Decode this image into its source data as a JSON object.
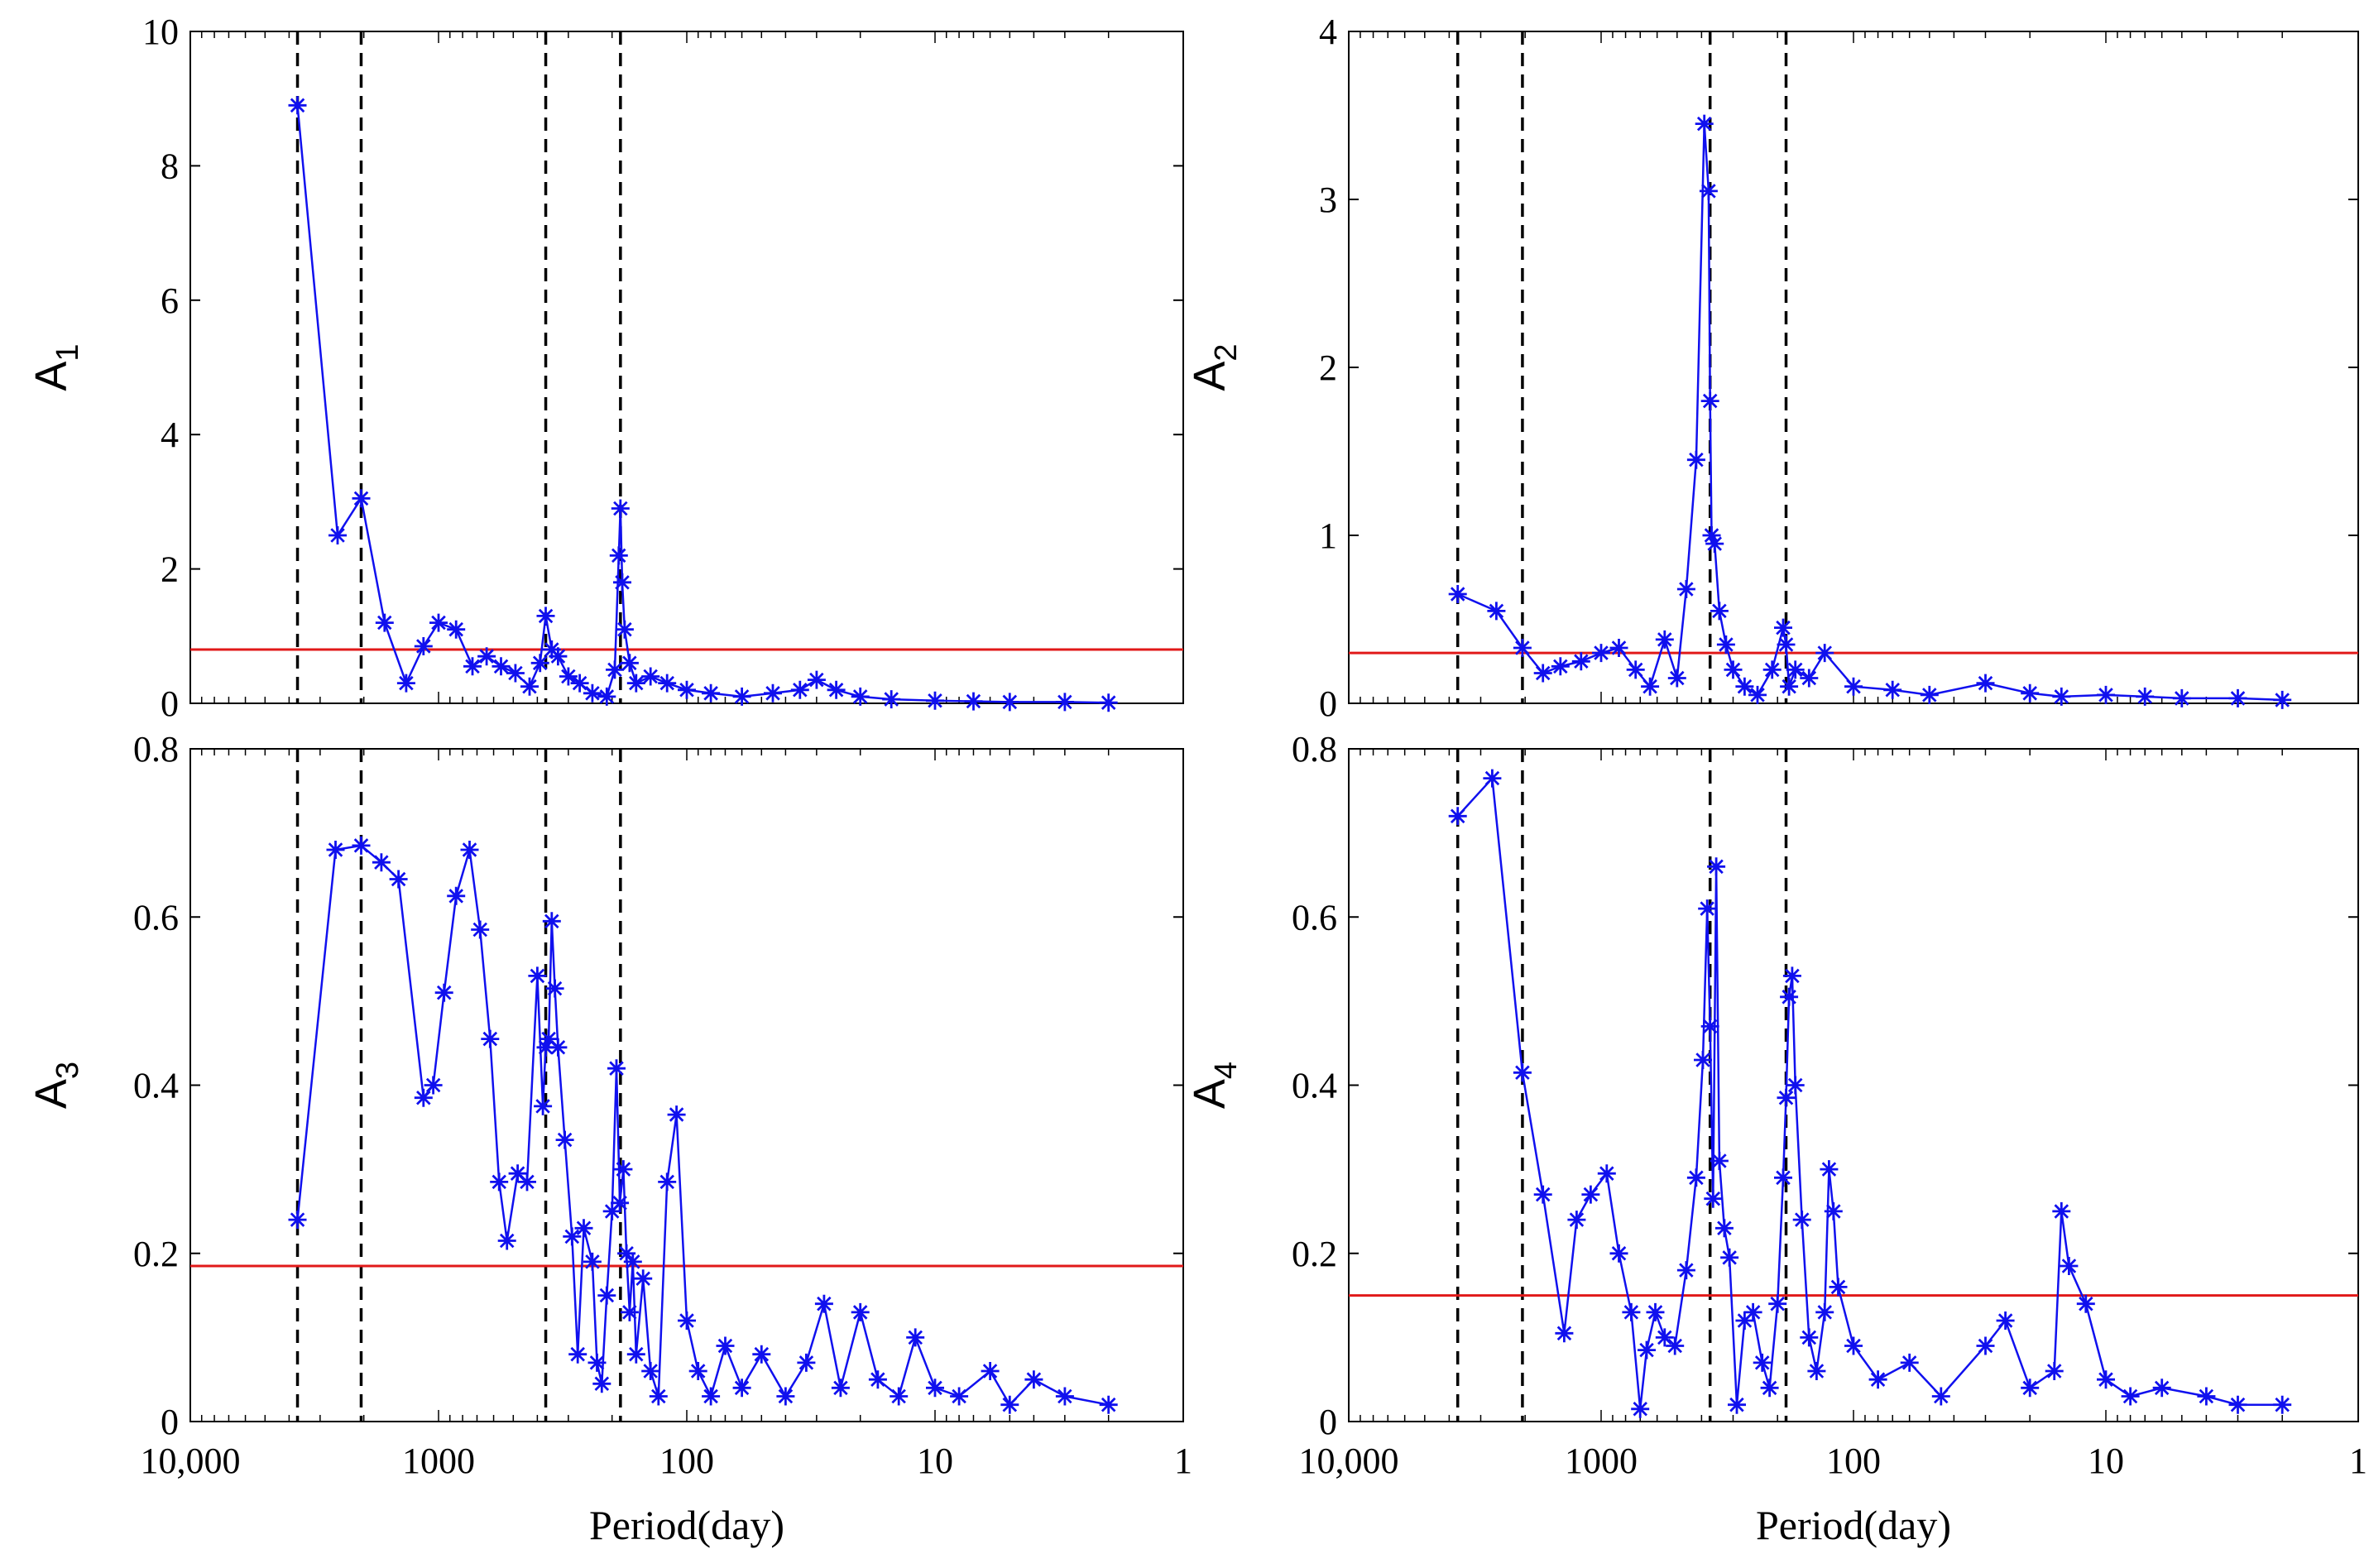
{
  "chart_data": [
    {
      "type": "line",
      "panel": "top-left",
      "ylabel": "A",
      "ylabel_sub": "1",
      "xlabel": "",
      "xscale": "log",
      "xreversed": true,
      "xlim": [
        10000,
        1
      ],
      "ylim": [
        0,
        10
      ],
      "yticks": [
        0,
        2,
        4,
        6,
        8,
        10
      ],
      "ytick_labels": [
        "0",
        "2",
        "4",
        "6",
        "8",
        "10"
      ],
      "xticks": [],
      "xtick_labels": [],
      "threshold": 0.8,
      "vlines": [
        3700,
        2050,
        370,
        185
      ],
      "series": [
        {
          "name": "A1",
          "marker": "*",
          "color": "#1010ee",
          "x": [
            3700,
            2550,
            2050,
            1650,
            1350,
            1150,
            1000,
            850,
            730,
            640,
            560,
            490,
            430,
            390,
            370,
            350,
            330,
            300,
            270,
            240,
            210,
            195,
            188,
            185,
            182,
            178,
            170,
            160,
            140,
            120,
            100,
            80,
            60,
            45,
            35,
            30,
            25,
            20,
            15,
            10,
            7,
            5,
            3,
            2
          ],
          "y": [
            8.9,
            2.5,
            3.05,
            1.2,
            0.3,
            0.85,
            1.2,
            1.1,
            0.55,
            0.7,
            0.55,
            0.45,
            0.25,
            0.6,
            1.3,
            0.8,
            0.7,
            0.4,
            0.3,
            0.15,
            0.1,
            0.5,
            2.2,
            2.9,
            1.8,
            1.1,
            0.6,
            0.3,
            0.4,
            0.3,
            0.2,
            0.15,
            0.1,
            0.15,
            0.2,
            0.35,
            0.2,
            0.1,
            0.06,
            0.04,
            0.03,
            0.02,
            0.02,
            0.01
          ]
        }
      ]
    },
    {
      "type": "line",
      "panel": "top-right",
      "ylabel": "A",
      "ylabel_sub": "2",
      "xlabel": "",
      "xscale": "log",
      "xreversed": true,
      "xlim": [
        10000,
        1
      ],
      "ylim": [
        0,
        4
      ],
      "yticks": [
        0,
        1,
        2,
        3,
        4
      ],
      "ytick_labels": [
        "0",
        "1",
        "2",
        "3",
        "4"
      ],
      "xticks": [],
      "xtick_labels": [],
      "threshold": 0.3,
      "vlines": [
        3700,
        2050,
        370,
        185
      ],
      "series": [
        {
          "name": "A2",
          "marker": "*",
          "color": "#1010ee",
          "x": [
            3700,
            2600,
            2050,
            1700,
            1450,
            1200,
            1000,
            850,
            730,
            640,
            560,
            500,
            460,
            420,
            390,
            375,
            370,
            365,
            355,
            340,
            320,
            300,
            270,
            240,
            210,
            190,
            185,
            180,
            170,
            150,
            130,
            100,
            70,
            50,
            30,
            20,
            15,
            10,
            7,
            5,
            3,
            2
          ],
          "y": [
            0.65,
            0.55,
            0.33,
            0.18,
            0.22,
            0.25,
            0.3,
            0.33,
            0.2,
            0.1,
            0.38,
            0.15,
            0.68,
            1.45,
            3.45,
            3.05,
            1.8,
            1.0,
            0.95,
            0.55,
            0.35,
            0.2,
            0.1,
            0.05,
            0.2,
            0.45,
            0.35,
            0.1,
            0.2,
            0.15,
            0.3,
            0.1,
            0.08,
            0.05,
            0.12,
            0.06,
            0.04,
            0.05,
            0.04,
            0.03,
            0.03,
            0.02
          ]
        }
      ]
    },
    {
      "type": "line",
      "panel": "bottom-left",
      "ylabel": "A",
      "ylabel_sub": "3",
      "xlabel": "Period(day)",
      "xscale": "log",
      "xreversed": true,
      "xlim": [
        10000,
        1
      ],
      "ylim": [
        0,
        0.8
      ],
      "yticks": [
        0,
        0.2,
        0.4,
        0.6,
        0.8
      ],
      "ytick_labels": [
        "0",
        "0.2",
        "0.4",
        "0.6",
        "0.8"
      ],
      "xticks": [
        10000,
        1000,
        100,
        10,
        1
      ],
      "xtick_labels": [
        "10,000",
        "1000",
        "100",
        "10",
        "1"
      ],
      "threshold": 0.185,
      "vlines": [
        3700,
        2050,
        370,
        185
      ],
      "series": [
        {
          "name": "A3",
          "marker": "*",
          "color": "#1010ee",
          "x": [
            3700,
            2600,
            2050,
            1700,
            1450,
            1150,
            1050,
            950,
            850,
            750,
            680,
            620,
            570,
            530,
            480,
            440,
            400,
            380,
            370,
            360,
            350,
            340,
            330,
            310,
            290,
            275,
            260,
            240,
            230,
            220,
            210,
            200,
            192,
            186,
            180,
            175,
            170,
            165,
            160,
            150,
            140,
            130,
            120,
            110,
            100,
            90,
            80,
            70,
            60,
            50,
            40,
            33,
            28,
            24,
            20,
            17,
            14,
            12,
            10,
            8,
            6,
            5,
            4,
            3,
            2
          ],
          "y": [
            0.24,
            0.68,
            0.685,
            0.665,
            0.645,
            0.385,
            0.4,
            0.51,
            0.625,
            0.68,
            0.585,
            0.455,
            0.285,
            0.215,
            0.295,
            0.285,
            0.53,
            0.375,
            0.445,
            0.455,
            0.595,
            0.515,
            0.445,
            0.335,
            0.22,
            0.08,
            0.23,
            0.19,
            0.07,
            0.045,
            0.15,
            0.25,
            0.42,
            0.26,
            0.3,
            0.2,
            0.13,
            0.19,
            0.08,
            0.17,
            0.06,
            0.03,
            0.285,
            0.365,
            0.12,
            0.06,
            0.03,
            0.09,
            0.04,
            0.08,
            0.03,
            0.07,
            0.14,
            0.04,
            0.13,
            0.05,
            0.03,
            0.1,
            0.04,
            0.03,
            0.06,
            0.02,
            0.05,
            0.03,
            0.02
          ]
        }
      ]
    },
    {
      "type": "line",
      "panel": "bottom-right",
      "ylabel": "A",
      "ylabel_sub": "4",
      "xlabel": "Period(day)",
      "xscale": "log",
      "xreversed": true,
      "xlim": [
        10000,
        1
      ],
      "ylim": [
        0,
        0.8
      ],
      "yticks": [
        0,
        0.2,
        0.4,
        0.6,
        0.8
      ],
      "ytick_labels": [
        "0",
        "0.2",
        "0.4",
        "0.6",
        "0.8"
      ],
      "xticks": [
        10000,
        1000,
        100,
        10,
        1
      ],
      "xtick_labels": [
        "10,000",
        "1000",
        "100",
        "10",
        "1"
      ],
      "threshold": 0.15,
      "vlines": [
        3700,
        2050,
        370,
        185
      ],
      "series": [
        {
          "name": "A4",
          "marker": "*",
          "color": "#1010ee",
          "x": [
            3700,
            2700,
            2050,
            1700,
            1400,
            1250,
            1100,
            950,
            850,
            760,
            700,
            660,
            610,
            560,
            510,
            460,
            420,
            395,
            380,
            370,
            360,
            350,
            340,
            325,
            310,
            290,
            270,
            250,
            230,
            215,
            200,
            190,
            185,
            180,
            175,
            170,
            160,
            150,
            140,
            130,
            125,
            120,
            115,
            100,
            80,
            60,
            45,
            30,
            25,
            20,
            16,
            15,
            14,
            12,
            10,
            8,
            6,
            4,
            3,
            2
          ],
          "y": [
            0.72,
            0.765,
            0.415,
            0.27,
            0.105,
            0.24,
            0.27,
            0.295,
            0.2,
            0.13,
            0.015,
            0.085,
            0.13,
            0.1,
            0.09,
            0.18,
            0.29,
            0.43,
            0.61,
            0.47,
            0.265,
            0.66,
            0.31,
            0.23,
            0.195,
            0.02,
            0.12,
            0.13,
            0.07,
            0.04,
            0.14,
            0.29,
            0.385,
            0.505,
            0.53,
            0.4,
            0.24,
            0.1,
            0.06,
            0.13,
            0.3,
            0.25,
            0.16,
            0.09,
            0.05,
            0.07,
            0.03,
            0.09,
            0.12,
            0.04,
            0.06,
            0.25,
            0.185,
            0.14,
            0.05,
            0.03,
            0.04,
            0.03,
            0.02,
            0.02
          ]
        }
      ]
    }
  ]
}
